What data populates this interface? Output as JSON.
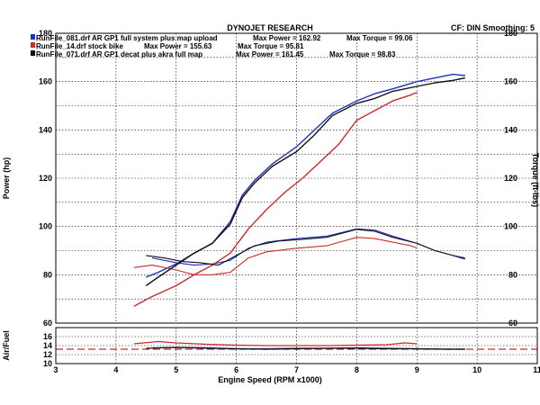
{
  "header": {
    "title": "DYNOJET RESEARCH",
    "settings": "CF: DIN  Smoothing: 5"
  },
  "legend": [
    {
      "file": "RunFile_081.drf AR GP1 full system plus map upload",
      "max_power": "Max Power = 162.92",
      "max_torque": "Max Torque = 99.06",
      "color": "#1f2fbf"
    },
    {
      "file": "RunFile_14.drf stock bike",
      "max_power": "Max Power = 155.63",
      "max_torque": "Max Torque = 95.81",
      "color": "#cc2a2a"
    },
    {
      "file": "RunFile_071.drf AR GP1 decat plus akra full map",
      "max_power": "Max Power = 161.45",
      "max_torque": "Max Torque = 98.83",
      "color": "#111111"
    }
  ],
  "chart_data": [
    {
      "type": "line",
      "title": "DYNOJET RESEARCH",
      "xlabel": "Engine Speed (RPM x1000)",
      "ylabel": "Power (hp)",
      "y2label": "Torque (ft-lbs)",
      "xlim": [
        3,
        11
      ],
      "ylim": [
        60,
        180
      ],
      "y2lim": [
        60,
        180
      ],
      "xticks": [
        "3",
        "4",
        "5",
        "6",
        "7",
        "8",
        "9",
        "10",
        "11"
      ],
      "yticks": [
        "60",
        "80",
        "100",
        "120",
        "140",
        "160",
        "180"
      ],
      "y2ticks": [
        "60",
        "80",
        "100",
        "120",
        "140",
        "160",
        "180"
      ],
      "grid": true,
      "legend_position": "top-left",
      "series": [
        {
          "name": "RunFile_081.drf AR GP1 full system plus map upload",
          "measure": "power",
          "color": "#1f2fbf",
          "x": [
            4.5,
            4.7,
            5.0,
            5.3,
            5.6,
            5.9,
            6.1,
            6.3,
            6.6,
            7.0,
            7.3,
            7.6,
            8.0,
            8.3,
            8.6,
            9.0,
            9.3,
            9.6,
            9.8
          ],
          "y": [
            79,
            81,
            84.5,
            89,
            93,
            102,
            113,
            119,
            126,
            133,
            140,
            147,
            152,
            155,
            157,
            160,
            161.5,
            163,
            162.5
          ]
        },
        {
          "name": "RunFile_081.drf AR GP1 full system plus map upload",
          "measure": "torque",
          "color": "#1f2fbf",
          "x": [
            4.6,
            5.0,
            5.3,
            5.6,
            5.9,
            6.2,
            6.5,
            7.0,
            7.5,
            8.0,
            8.3,
            8.6,
            9.0,
            9.3,
            9.6,
            9.8
          ],
          "y": [
            87,
            85,
            84,
            84.5,
            86,
            91,
            93.5,
            95,
            96,
            99,
            98.5,
            96,
            93,
            90,
            88,
            87
          ]
        },
        {
          "name": "RunFile_14.drf stock bike",
          "measure": "power",
          "color": "#cc2a2a",
          "x": [
            4.3,
            4.6,
            5.0,
            5.3,
            5.6,
            5.9,
            6.2,
            6.5,
            6.8,
            7.1,
            7.4,
            7.7,
            8.0,
            8.3,
            8.6,
            8.9,
            9.0
          ],
          "y": [
            67,
            71,
            75.5,
            80,
            84,
            89,
            99,
            107,
            114,
            120,
            127,
            134,
            144,
            148,
            152,
            154.5,
            155.5
          ]
        },
        {
          "name": "RunFile_14.drf stock bike",
          "measure": "torque",
          "color": "#cc2a2a",
          "x": [
            4.3,
            4.6,
            5.0,
            5.3,
            5.6,
            5.9,
            6.2,
            6.5,
            7.0,
            7.5,
            8.0,
            8.3,
            8.6,
            8.9,
            9.0
          ],
          "y": [
            83,
            84,
            82,
            80,
            80,
            81,
            87,
            89.5,
            91,
            92,
            95.5,
            95,
            93.5,
            92,
            91
          ]
        },
        {
          "name": "RunFile_071.drf AR GP1 decat plus akra full map",
          "measure": "power",
          "color": "#111111",
          "x": [
            4.5,
            4.7,
            5.0,
            5.3,
            5.6,
            5.9,
            6.1,
            6.3,
            6.6,
            7.0,
            7.3,
            7.6,
            8.0,
            8.3,
            8.6,
            9.0,
            9.3,
            9.6,
            9.8
          ],
          "y": [
            75.5,
            79,
            84,
            89,
            93,
            101,
            112,
            118,
            125,
            131,
            138,
            146,
            151,
            153,
            156,
            158,
            159.5,
            160.5,
            161.5
          ]
        },
        {
          "name": "RunFile_071.drf AR GP1 decat plus akra full map",
          "measure": "torque",
          "color": "#111111",
          "x": [
            4.5,
            4.8,
            5.1,
            5.4,
            5.7,
            6.0,
            6.3,
            6.7,
            7.0,
            7.5,
            8.0,
            8.3,
            8.6,
            9.0,
            9.3,
            9.6,
            9.8
          ],
          "y": [
            88,
            87,
            85.5,
            85,
            84,
            88,
            92,
            94,
            94.5,
            95.5,
            98.8,
            98,
            95.5,
            93,
            90,
            88,
            86.5
          ]
        }
      ]
    },
    {
      "type": "line",
      "ylabel": "Air/Fuel",
      "xlim": [
        3,
        11
      ],
      "ylim": [
        10,
        18
      ],
      "yticks": [
        "10",
        "12",
        "14",
        "16"
      ],
      "grid": true,
      "reference_line": {
        "y": 13.2,
        "color": "#cc2a2a",
        "style": "dashed"
      },
      "series": [
        {
          "name": "RunFile_081.drf AR GP1 full system plus map upload",
          "color": "#1f2fbf",
          "x": [
            4.6,
            5.0,
            5.5,
            6.0,
            6.5,
            7.0,
            7.5,
            8.0,
            8.5,
            9.0,
            9.5,
            9.8
          ],
          "y": [
            13.5,
            13.6,
            13.4,
            13.3,
            13.3,
            13.4,
            13.4,
            13.5,
            13.4,
            13.3,
            13.2,
            13.2
          ]
        },
        {
          "name": "RunFile_14.drf stock bike",
          "color": "#cc2a2a",
          "x": [
            4.3,
            4.7,
            5.0,
            5.5,
            6.0,
            6.5,
            7.0,
            7.5,
            8.0,
            8.5,
            8.8,
            9.0
          ],
          "y": [
            14.4,
            14.9,
            14.6,
            14.3,
            14.1,
            14.0,
            14.0,
            14.0,
            14.1,
            14.2,
            14.6,
            14.4
          ]
        },
        {
          "name": "RunFile_071.drf AR GP1 decat plus akra full map",
          "color": "#111111",
          "x": [
            4.5,
            5.0,
            5.5,
            6.0,
            6.5,
            7.0,
            7.5,
            8.0,
            8.5,
            9.0,
            9.5,
            9.8
          ],
          "y": [
            13.4,
            13.6,
            13.5,
            13.3,
            13.2,
            13.3,
            13.4,
            13.4,
            13.3,
            13.3,
            13.2,
            13.2
          ]
        }
      ]
    }
  ]
}
